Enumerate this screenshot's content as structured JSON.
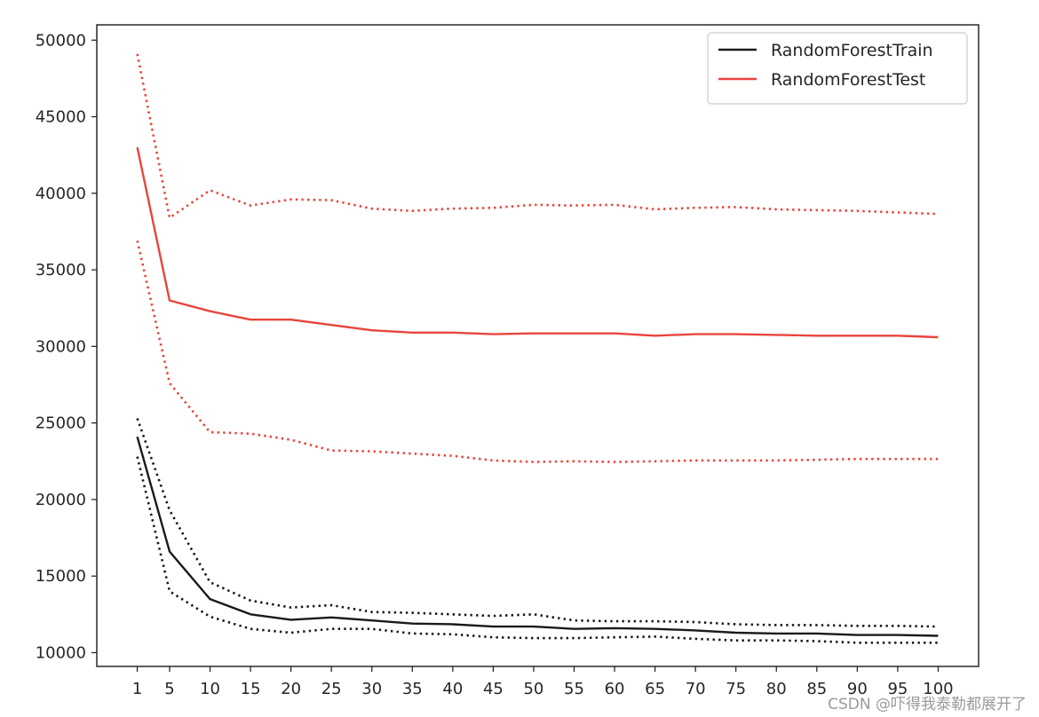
{
  "chart_data": {
    "type": "line",
    "title": "",
    "xlabel": "",
    "ylabel": "",
    "x": [
      1,
      5,
      10,
      15,
      20,
      25,
      30,
      35,
      40,
      45,
      50,
      55,
      60,
      65,
      70,
      75,
      80,
      85,
      90,
      95,
      100
    ],
    "xticks": [
      "1",
      "5",
      "10",
      "15",
      "20",
      "25",
      "30",
      "35",
      "40",
      "45",
      "50",
      "55",
      "60",
      "65",
      "70",
      "75",
      "80",
      "85",
      "90",
      "95",
      "100"
    ],
    "yticks": [
      "10000",
      "15000",
      "20000",
      "25000",
      "30000",
      "35000",
      "40000",
      "45000",
      "50000"
    ],
    "xlim": [
      -4,
      105
    ],
    "ylim": [
      9100,
      51000
    ],
    "grid": false,
    "legend_position": "top-right",
    "series": [
      {
        "name": "RandomForestTrain",
        "color": "#1a1a1a",
        "style": "solid",
        "values": [
          24100,
          16600,
          13500,
          12500,
          12150,
          12300,
          12100,
          11900,
          11850,
          11700,
          11700,
          11550,
          11600,
          11550,
          11450,
          11300,
          11250,
          11250,
          11150,
          11150,
          11100
        ]
      },
      {
        "name": "",
        "color": "#1a1a1a",
        "style": "dotted",
        "values": [
          25300,
          19300,
          14600,
          13400,
          12950,
          13100,
          12650,
          12600,
          12500,
          12400,
          12500,
          12100,
          12050,
          12050,
          12000,
          11850,
          11800,
          11800,
          11750,
          11750,
          11700
        ]
      },
      {
        "name": "",
        "color": "#1a1a1a",
        "style": "dotted",
        "values": [
          22800,
          14000,
          12350,
          11550,
          11300,
          11550,
          11550,
          11250,
          11200,
          11000,
          10950,
          10950,
          11000,
          11050,
          10900,
          10800,
          10800,
          10750,
          10650,
          10650,
          10650
        ]
      },
      {
        "name": "RandomForestTest",
        "color": "#e8453c",
        "style": "solid",
        "values": [
          43000,
          33000,
          32300,
          31750,
          31750,
          31400,
          31050,
          30900,
          30900,
          30800,
          30850,
          30850,
          30850,
          30700,
          30800,
          30800,
          30750,
          30700,
          30700,
          30700,
          30600
        ]
      },
      {
        "name": "",
        "color": "#e8453c",
        "style": "dotted",
        "values": [
          49100,
          38400,
          40200,
          39200,
          39600,
          39550,
          39000,
          38850,
          39000,
          39050,
          39250,
          39200,
          39250,
          38950,
          39050,
          39100,
          38950,
          38900,
          38850,
          38750,
          38650
        ]
      },
      {
        "name": "",
        "color": "#e8453c",
        "style": "dotted",
        "values": [
          36900,
          27600,
          24400,
          24300,
          23900,
          23200,
          23150,
          23000,
          22850,
          22550,
          22450,
          22500,
          22450,
          22500,
          22550,
          22550,
          22550,
          22600,
          22650,
          22650,
          22650
        ]
      }
    ]
  },
  "watermark": "CSDN @吓得我泰勒都展开了"
}
